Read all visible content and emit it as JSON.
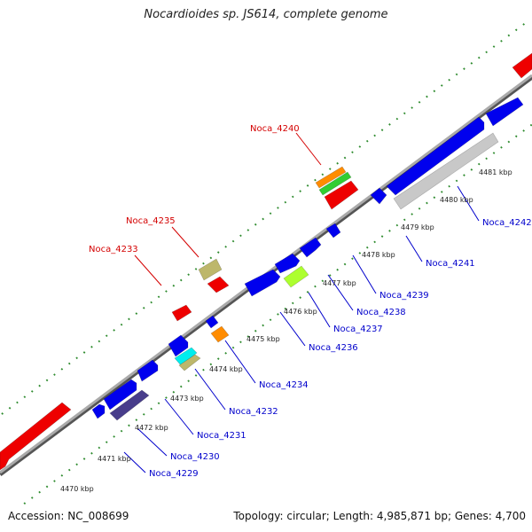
{
  "title": "Nocardioides sp. JS614, complete genome",
  "footer": {
    "accession": "Accession: NC_008699",
    "summary": "Topology: circular; Length: 4,985,871 bp; Genes: 4,700"
  },
  "colors": {
    "backbone": "#888888",
    "tick": "#2e8b2e",
    "label_forward": "#d40000",
    "label_reverse": "#0000cc",
    "red": "#ee0000",
    "blue": "#0000ee",
    "orange": "#ff8c00",
    "green": "#32cd32",
    "khaki": "#bdb76b",
    "lime": "#adff2f",
    "cyan": "#00eeee",
    "darkslate": "#483d8b",
    "gray": "#c8c8c8"
  },
  "kbp_labels": [
    "4470 kbp",
    "4471 kbp",
    "4472 kbp",
    "4473 kbp",
    "4474 kbp",
    "4475 kbp",
    "4476 kbp",
    "4477 kbp",
    "4478 kbp",
    "4479 kbp",
    "4480 kbp",
    "4481 kbp"
  ],
  "labels_forward": [
    "Noca_4233",
    "Noca_4235",
    "Noca_4240"
  ],
  "labels_reverse": [
    "Noca_4229",
    "Noca_4230",
    "Noca_4231",
    "Noca_4232",
    "Noca_4234",
    "Noca_4236",
    "Noca_4237",
    "Noca_4238",
    "Noca_4239",
    "Noca_4241",
    "Noca_4242"
  ]
}
